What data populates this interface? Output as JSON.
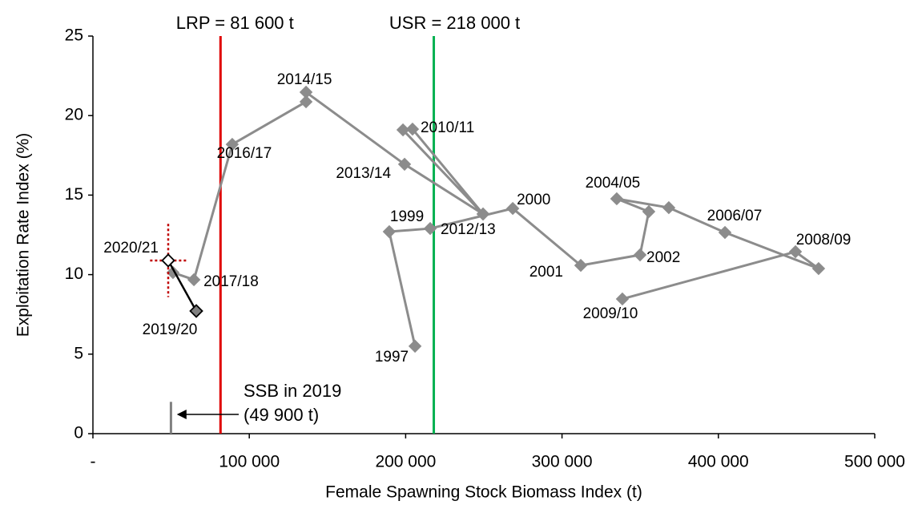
{
  "chart_data": {
    "type": "line",
    "x_label": "Female Spawning  Stock Biomass Index (t)",
    "y_label": "Exploitation Rate Index (%)",
    "xlim": [
      0,
      500000
    ],
    "ylim": [
      0,
      25
    ],
    "xticks": [
      {
        "value": 0,
        "label": "-"
      },
      {
        "value": 100000,
        "label": "100 000"
      },
      {
        "value": 200000,
        "label": "200 000"
      },
      {
        "value": 300000,
        "label": "300 000"
      },
      {
        "value": 400000,
        "label": "400 000"
      },
      {
        "value": 500000,
        "label": "500 000"
      }
    ],
    "yticks": [
      0,
      5,
      10,
      15,
      20,
      25
    ],
    "series": [
      {
        "color": "#8c8c8c",
        "x": [
          206000,
          189500,
          215700,
          268500,
          312000,
          349900,
          355500,
          335000,
          368300,
          404200,
          464100,
          449300,
          338600,
          null,
          249500,
          198300,
          204400,
          249500,
          199300,
          136300,
          136300,
          89100,
          64600,
          51200
        ],
        "y": [
          5.5,
          12.7,
          12.9,
          14.16,
          10.58,
          11.24,
          13.96,
          14.77,
          14.21,
          12.65,
          10.38,
          11.44,
          8.47,
          null,
          13.81,
          19.1,
          19.15,
          13.81,
          16.94,
          21.47,
          20.87,
          18.19,
          9.68,
          10.13
        ],
        "labels": [
          "1997",
          "1999",
          "2012/13",
          "2000",
          "2001",
          "2002",
          null,
          "2004/05",
          null,
          "2006/07",
          null,
          "2008/09",
          "2009/10",
          null,
          null,
          null,
          "2010/11",
          null,
          "2013/14",
          "2014/15",
          null,
          "2016/17",
          "2017/18",
          null
        ]
      },
      {
        "color": "#000000",
        "marker_fills": [
          "#ffffff",
          "#808080"
        ],
        "x": [
          48150,
          66100
        ],
        "y": [
          10.89,
          7.71
        ],
        "labels": [
          "2020/21",
          "2019/20"
        ],
        "error_x": [
          11600,
          null
        ],
        "error_y": [
          2.3,
          null
        ],
        "error_color": "#c00000"
      }
    ],
    "reference_lines": [
      {
        "label": "LRP = 81 600 t",
        "value": 81600,
        "color": "#e00000"
      },
      {
        "label": "USR = 218 000 t",
        "value": 218000,
        "color": "#00b050"
      }
    ],
    "annotation": {
      "lines": [
        "SSB in 2019",
        "(49 900 t)"
      ],
      "x": 49900,
      "y": 2,
      "color": "#808080"
    }
  }
}
